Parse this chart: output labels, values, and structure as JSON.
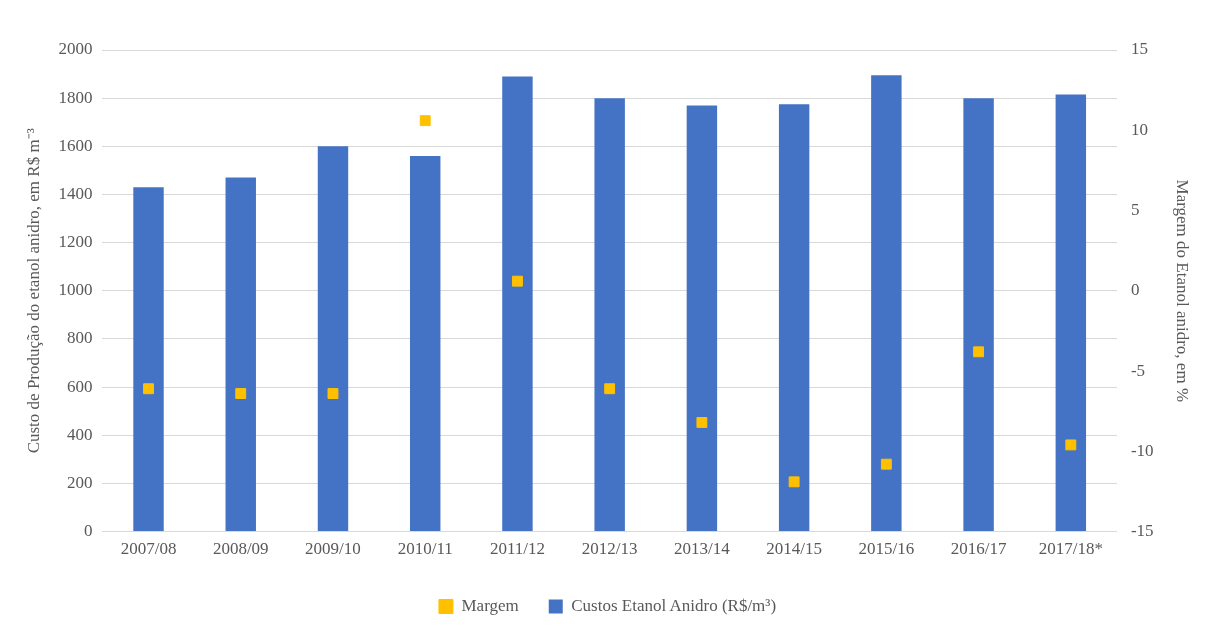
{
  "chart_data": {
    "type": "bar",
    "ylabel": "Custo de Produção do etanol anidro, em R$ m⁻³",
    "y2label": "Margem do Etanol anidro, em %",
    "categories": [
      "2007/08",
      "2008/09",
      "2009/10",
      "2010/11",
      "2011/12",
      "2012/13",
      "2013/14",
      "2014/15",
      "2015/16",
      "2016/17",
      "2017/18*"
    ],
    "series": [
      {
        "name": "Custos Etanol Anidro (R$/m³)",
        "color": "#4472c4",
        "values": [
          1430,
          1470,
          1600,
          1560,
          1890,
          1800,
          1770,
          1775,
          1895,
          1800,
          1815
        ]
      },
      {
        "name": "Margem",
        "type": "scatter",
        "axis": "y2",
        "color": "#ffc000",
        "values": [
          -6.1,
          -6.4,
          -6.4,
          10.6,
          0.6,
          -6.1,
          -8.2,
          -11.9,
          -10.8,
          -3.8,
          -9.6
        ]
      }
    ],
    "ylim": [
      0,
      2000
    ],
    "yticks": [
      0,
      200,
      400,
      600,
      800,
      1000,
      1200,
      1400,
      1600,
      1800,
      2000
    ],
    "y2lim": [
      -15,
      15
    ],
    "y2ticks": [
      -15,
      -10,
      -5,
      0,
      5,
      10,
      15
    ],
    "grid": "y",
    "legend": "bottom",
    "marker": "square"
  }
}
